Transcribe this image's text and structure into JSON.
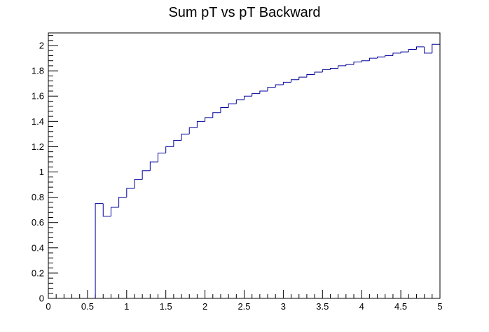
{
  "chart_data": {
    "type": "line",
    "style": "step-histogram",
    "title": "Sum pT vs pT Backward",
    "xlabel": "",
    "ylabel": "",
    "xlim": [
      0,
      5
    ],
    "ylim": [
      0,
      2.1
    ],
    "x_ticks": [
      0,
      0.5,
      1,
      1.5,
      2,
      2.5,
      3,
      3.5,
      4,
      4.5,
      5
    ],
    "x_tick_labels": [
      "0",
      "0.5",
      "1",
      "1.5",
      "2",
      "2.5",
      "3",
      "3.5",
      "4",
      "4.5",
      "5"
    ],
    "y_ticks": [
      0,
      0.2,
      0.4,
      0.6,
      0.8,
      1,
      1.2,
      1.4,
      1.6,
      1.8,
      2
    ],
    "y_tick_labels": [
      "0",
      "0.2",
      "0.4",
      "0.6",
      "0.8",
      "1",
      "1.2",
      "1.4",
      "1.6",
      "1.8",
      "2"
    ],
    "grid": false,
    "line_color": "#000099",
    "bin_edges": [
      0,
      0.1,
      0.2,
      0.3,
      0.4,
      0.5,
      0.6,
      0.7,
      0.8,
      0.9,
      1.0,
      1.1,
      1.2,
      1.3,
      1.4,
      1.5,
      1.6,
      1.7,
      1.8,
      1.9,
      2.0,
      2.1,
      2.2,
      2.3,
      2.4,
      2.5,
      2.6,
      2.7,
      2.8,
      2.9,
      3.0,
      3.1,
      3.2,
      3.3,
      3.4,
      3.5,
      3.6,
      3.7,
      3.8,
      3.9,
      4.0,
      4.1,
      4.2,
      4.3,
      4.4,
      4.5,
      4.6,
      4.7,
      4.8,
      4.9,
      5.0
    ],
    "values": [
      0,
      0,
      0,
      0,
      0,
      0,
      0.75,
      0.65,
      0.72,
      0.8,
      0.87,
      0.94,
      1.01,
      1.08,
      1.15,
      1.2,
      1.25,
      1.3,
      1.35,
      1.4,
      1.43,
      1.47,
      1.51,
      1.54,
      1.57,
      1.6,
      1.62,
      1.64,
      1.67,
      1.69,
      1.71,
      1.73,
      1.75,
      1.77,
      1.79,
      1.81,
      1.82,
      1.84,
      1.85,
      1.87,
      1.88,
      1.9,
      1.91,
      1.92,
      1.94,
      1.95,
      1.97,
      1.99,
      1.94,
      2.01
    ]
  }
}
